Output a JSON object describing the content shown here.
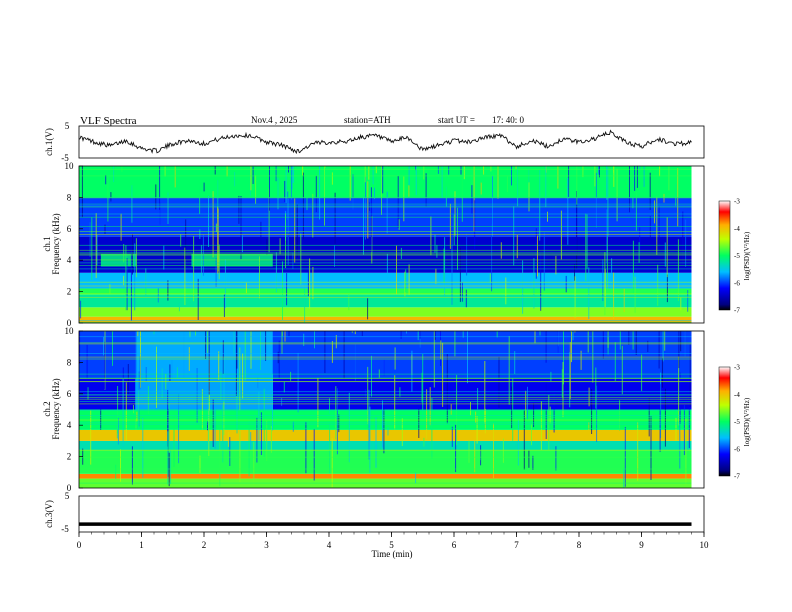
{
  "header": {
    "title": "VLF  Spectra",
    "date": "Nov.4  , 2025",
    "station": "station=ATH",
    "start_ut_label": "start  UT  =",
    "start_ut_value": "17: 40: 0"
  },
  "chart_data": [
    {
      "type": "line",
      "panel": "ch1-waveform",
      "ylabel": "ch.1(V)",
      "ylim": [
        -5,
        5
      ],
      "yticks": [
        "5",
        "-5"
      ],
      "x": [
        0,
        0.25,
        0.5,
        0.75,
        1.0,
        1.25,
        1.5,
        1.75,
        2.0,
        2.25,
        2.5,
        2.75,
        3.0,
        3.25,
        3.5,
        3.75,
        4.0,
        4.25,
        4.5,
        4.75,
        5.0,
        5.25,
        5.5,
        5.75,
        6.0,
        6.25,
        6.5,
        6.75,
        7.0,
        7.25,
        7.5,
        7.75,
        8.0,
        8.25,
        8.5,
        8.75,
        9.0,
        9.25,
        9.5,
        9.8
      ],
      "values": [
        1.5,
        0.0,
        -1.2,
        0.5,
        -2.0,
        -2.8,
        -0.5,
        0.5,
        -0.5,
        1.0,
        2.0,
        2.0,
        0.0,
        -1.0,
        -3.0,
        -0.5,
        0.0,
        0.0,
        1.5,
        2.0,
        0.0,
        1.5,
        -2.5,
        -1.0,
        0.5,
        0.0,
        1.5,
        2.0,
        -1.5,
        0.5,
        -1.5,
        1.0,
        0.0,
        1.0,
        3.0,
        0.0,
        -1.5,
        1.0,
        -0.5,
        -0.3
      ]
    },
    {
      "type": "heatmap",
      "panel": "ch1-spectrogram",
      "ylabel": "ch.1\nFrequency (kHz)",
      "ylim": [
        0,
        10
      ],
      "yticks": [
        "0",
        "2",
        "4",
        "6",
        "8",
        "10"
      ],
      "color_scale": "log(PSD)(V²/Hz)",
      "color_range": [
        -7,
        -3
      ],
      "colorbar_ticks": [
        "-3",
        "-4",
        "-5",
        "-6",
        "-7"
      ],
      "bands": [
        {
          "f_min": 0.0,
          "f_max": 0.4,
          "level": -3.9
        },
        {
          "f_min": 0.4,
          "f_max": 1.0,
          "level": -4.6
        },
        {
          "f_min": 1.0,
          "f_max": 1.8,
          "level": -5.2
        },
        {
          "f_min": 1.8,
          "f_max": 2.2,
          "level": -4.9
        },
        {
          "f_min": 2.2,
          "f_max": 3.2,
          "level": -5.6
        },
        {
          "f_min": 3.2,
          "f_max": 5.5,
          "level": -6.5
        },
        {
          "f_min": 5.5,
          "f_max": 8.0,
          "level": -6.0
        },
        {
          "f_min": 8.0,
          "f_max": 10.0,
          "level": -5.0
        }
      ],
      "patches": [
        {
          "t_min": 0.35,
          "t_max": 0.92,
          "f_min": 3.6,
          "f_max": 4.4,
          "level": -5.1
        },
        {
          "t_min": 1.8,
          "t_max": 3.1,
          "f_min": 3.6,
          "f_max": 4.4,
          "level": -5.1
        }
      ]
    },
    {
      "type": "heatmap",
      "panel": "ch2-spectrogram",
      "ylabel": "ch.2\nFrequency (kHz)",
      "ylim": [
        0,
        10
      ],
      "yticks": [
        "0",
        "2",
        "4",
        "6",
        "8",
        "10"
      ],
      "color_scale": "log(PSD)(V²/Hz)",
      "color_range": [
        -7,
        -3
      ],
      "colorbar_ticks": [
        "-3",
        "-4",
        "-5",
        "-6",
        "-7"
      ],
      "bands": [
        {
          "f_min": 0.0,
          "f_max": 0.6,
          "level": -4.7
        },
        {
          "f_min": 0.6,
          "f_max": 0.9,
          "level": -3.7
        },
        {
          "f_min": 0.9,
          "f_max": 2.4,
          "level": -4.9
        },
        {
          "f_min": 2.4,
          "f_max": 3.0,
          "level": -5.3
        },
        {
          "f_min": 3.0,
          "f_max": 3.7,
          "level": -4.0
        },
        {
          "f_min": 3.7,
          "f_max": 5.0,
          "level": -5.0
        },
        {
          "f_min": 5.0,
          "f_max": 7.0,
          "level": -6.3
        },
        {
          "f_min": 7.0,
          "f_max": 10.0,
          "level": -6.0
        }
      ],
      "patches": [
        {
          "t_min": 0.9,
          "t_max": 3.1,
          "f_min": 5.0,
          "f_max": 10.0,
          "level": -5.6
        }
      ]
    },
    {
      "type": "line",
      "panel": "ch3-waveform",
      "ylabel": "ch.3(V)",
      "ylim": [
        -5,
        5
      ],
      "yticks": [
        "5",
        "-5"
      ],
      "x": [
        0,
        9.8
      ],
      "values": [
        -2.8,
        -2.8
      ]
    }
  ],
  "xaxis": {
    "label": "Time  (min)",
    "range": [
      0,
      10
    ],
    "ticks": [
      "0",
      "1",
      "2",
      "3",
      "4",
      "5",
      "6",
      "7",
      "8",
      "9",
      "10"
    ],
    "data_end": 9.8
  }
}
